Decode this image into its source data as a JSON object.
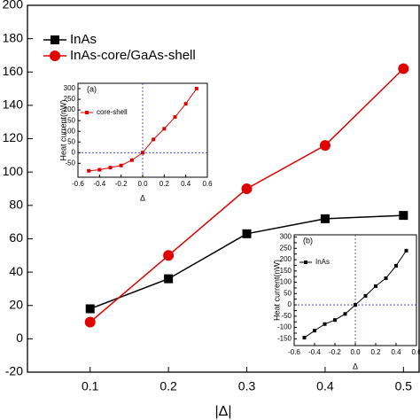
{
  "chart_data": [
    {
      "type": "line",
      "x": [
        0.1,
        0.2,
        0.3,
        0.4,
        0.5
      ],
      "xlim": [
        0.02,
        0.52
      ],
      "xticks": [
        0.1,
        0.2,
        0.3,
        0.4,
        0.5
      ],
      "ylim": [
        -20,
        200
      ],
      "yticks": [
        -20,
        0,
        20,
        40,
        60,
        80,
        100,
        120,
        140,
        160,
        180,
        200
      ],
      "xlabel": "|Δ|",
      "series": [
        {
          "name": "InAs",
          "color": "#000000",
          "marker": "square",
          "values": [
            18,
            36,
            63,
            72,
            74
          ]
        },
        {
          "name": "InAs-core/GaAs-shell",
          "color": "#e00000",
          "marker": "circle",
          "values": [
            10,
            50,
            90,
            116,
            162
          ]
        }
      ]
    },
    {
      "type": "line",
      "annotation": "(a)",
      "x": [
        -0.5,
        -0.4,
        -0.3,
        -0.2,
        -0.1,
        0,
        0.1,
        0.2,
        0.3,
        0.4,
        0.5
      ],
      "xlim": [
        -0.6,
        0.6
      ],
      "xticks": [
        -0.6,
        -0.4,
        -0.2,
        {
          "value": 0,
          "label": "0.0"
        },
        0.2,
        0.4,
        0.6
      ],
      "ylim": [
        -115,
        325
      ],
      "yticks": [
        -50,
        0,
        50,
        100,
        150,
        200,
        250,
        300
      ],
      "xlabel": "Δ",
      "ylabel": "Heat current(nW)",
      "zero_lines": true,
      "series": [
        {
          "name": "core-shell",
          "color": "#e00000",
          "marker": "square",
          "values": [
            -85,
            -80,
            -70,
            -60,
            -35,
            0,
            62,
            112,
            167,
            229,
            300
          ]
        }
      ]
    },
    {
      "type": "line",
      "annotation": "(b)",
      "x": [
        -0.5,
        -0.4,
        -0.3,
        -0.2,
        -0.1,
        0,
        0.1,
        0.2,
        0.3,
        0.4,
        0.5
      ],
      "xlim": [
        -0.6,
        0.6
      ],
      "xticks": [
        -0.6,
        -0.4,
        -0.2,
        {
          "value": 0,
          "label": "0.0"
        },
        0.2,
        0.4,
        0.6
      ],
      "ylim": [
        -180,
        310
      ],
      "yticks": [
        -150,
        -125,
        -100,
        -75,
        -50,
        -25,
        0,
        25,
        50,
        75,
        100,
        125,
        150,
        175,
        200,
        225,
        250,
        275,
        300
      ],
      "xlabel": "Δ",
      "ylabel": "Heat current(nW)",
      "zero_lines": true,
      "series": [
        {
          "name": "InAs",
          "color": "#000000",
          "marker": "square",
          "values": [
            -145,
            -114,
            -85,
            -67,
            -40,
            0,
            40,
            83,
            118,
            173,
            240
          ]
        }
      ]
    }
  ]
}
